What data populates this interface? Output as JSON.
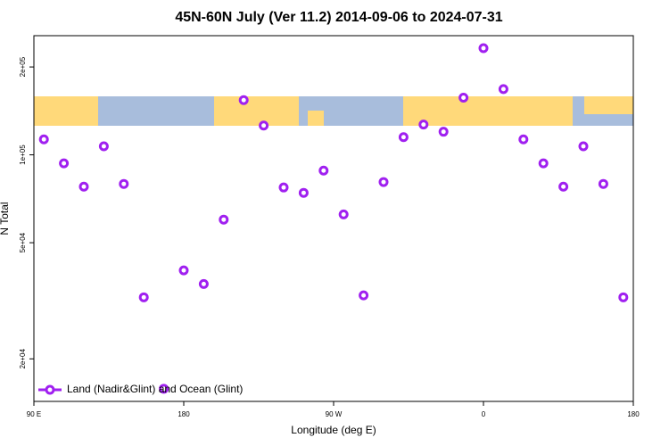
{
  "chart_data": {
    "type": "scatter",
    "title": "45N-60N July (Ver 11.2)   2014-09-06 to 2024-07-31",
    "x_label": "Longitude (deg E)",
    "y_label": "N Total",
    "x": [
      96,
      108,
      120,
      132,
      144,
      156,
      168,
      180,
      192,
      204,
      216,
      228,
      240,
      252,
      264,
      276,
      288,
      300,
      312,
      324,
      336,
      348,
      360,
      372,
      384,
      396,
      408,
      420,
      432,
      444
    ],
    "series": [
      {
        "name": "Land (Nadir&Glint) and Ocean (Glint)",
        "color": "#a020f0",
        "values": [
          113000,
          93500,
          77800,
          107000,
          79500,
          32500,
          15800,
          40200,
          36100,
          60000,
          154000,
          126000,
          77300,
          74100,
          88300,
          62500,
          33000,
          80700,
          115000,
          127000,
          120000,
          157000,
          232000,
          168000,
          113000,
          93500,
          77800,
          107000,
          79500,
          32500
        ]
      }
    ],
    "xlim": [
      90,
      450
    ],
    "xticks": [
      {
        "value": 90,
        "label": "90 E"
      },
      180,
      {
        "value": 270,
        "label": "90 W"
      },
      {
        "value": 360,
        "label": "0"
      },
      {
        "value": 450,
        "label": "180"
      }
    ],
    "ylim": [
      14300,
      256000
    ],
    "log_y": true,
    "yticks": [
      {
        "value": 20000,
        "label": "2e+04"
      },
      {
        "value": 50000,
        "label": "5e+04"
      },
      {
        "value": 100000,
        "label": "1e+05"
      },
      {
        "value": 200000,
        "label": "2e+05"
      }
    ],
    "legend": "bottom-left"
  }
}
